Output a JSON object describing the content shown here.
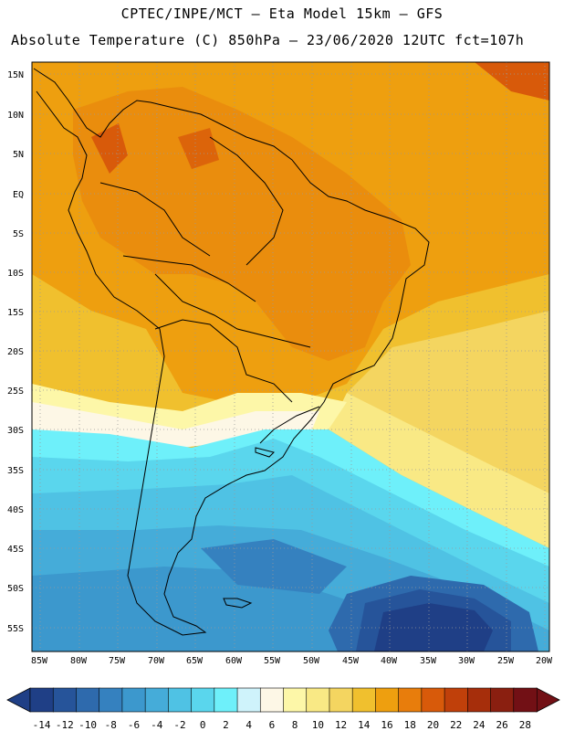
{
  "header": {
    "line1": "CPTEC/INPE/MCT –  Eta Model 15km – GFS",
    "line2": "Absolute Temperature (C) 850hPa – 23/06/2020 12UTC fct=107h"
  },
  "map": {
    "lat_labels": [
      "15N",
      "10N",
      "5N",
      "EQ",
      "5S",
      "10S",
      "15S",
      "20S",
      "25S",
      "30S",
      "35S",
      "40S",
      "45S",
      "50S",
      "55S"
    ],
    "lon_labels": [
      "85W",
      "80W",
      "75W",
      "70W",
      "65W",
      "60W",
      "55W",
      "50W",
      "45W",
      "40W",
      "35W",
      "30W",
      "25W",
      "20W"
    ]
  },
  "colorbar": {
    "labels": [
      "-14",
      "-12",
      "-10",
      "-8",
      "-6",
      "-4",
      "-2",
      "0",
      "2",
      "4",
      "6",
      "8",
      "10",
      "12",
      "14",
      "16",
      "18",
      "20",
      "22",
      "24",
      "26",
      "28"
    ],
    "colors": [
      "#1f3f86",
      "#26549a",
      "#2e6aad",
      "#3581bf",
      "#3c98cd",
      "#45acd9",
      "#4fc2e4",
      "#5ad6ed",
      "#6ef0fa",
      "#cff3fb",
      "#fdf7e6",
      "#fdf7a8",
      "#f9e985",
      "#f4d560",
      "#f0c02e",
      "#ee9f0f",
      "#e87d0c",
      "#d85a0a",
      "#c0400a",
      "#a62e0b",
      "#8a1f10",
      "#721015"
    ]
  }
}
